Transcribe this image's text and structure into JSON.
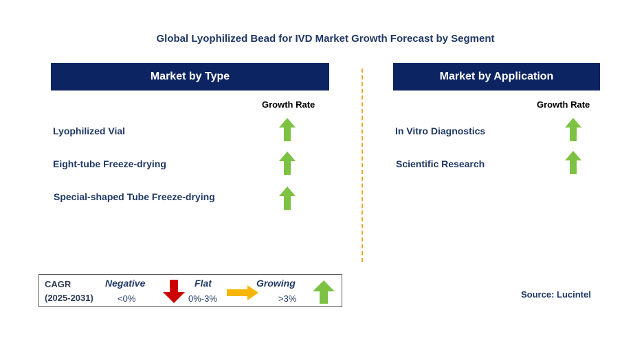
{
  "title": "Global Lyophilized Bead for IVD Market Growth Forecast by Segment",
  "type_panel": {
    "header": "Market by Type",
    "growth_rate_label": "Growth Rate",
    "items": [
      {
        "label": "Lyophilized Vial",
        "trend": "growing"
      },
      {
        "label": "Eight-tube Freeze-drying",
        "trend": "growing"
      },
      {
        "label": "Special-shaped Tube Freeze-drying",
        "trend": "growing"
      }
    ]
  },
  "application_panel": {
    "header": "Market by Application",
    "growth_rate_label": "Growth Rate",
    "items": [
      {
        "label": "In Vitro Diagnostics",
        "trend": "growing"
      },
      {
        "label": "Scientific Research",
        "trend": "growing"
      }
    ]
  },
  "legend": {
    "cagr_label": "CAGR",
    "period": "(2025-2031)",
    "negative_label": "Negative",
    "negative_value": "<0%",
    "flat_label": "Flat",
    "flat_value": "0%-3%",
    "growing_label": "Growing",
    "growing_value": ">3%"
  },
  "source": "Source: Lucintel",
  "colors": {
    "header_bg": "#0c2461",
    "growing_arrow": "#7dc242",
    "negative_arrow": "#cc0000",
    "flat_arrow": "#f7b500",
    "divider": "#f5a623"
  }
}
